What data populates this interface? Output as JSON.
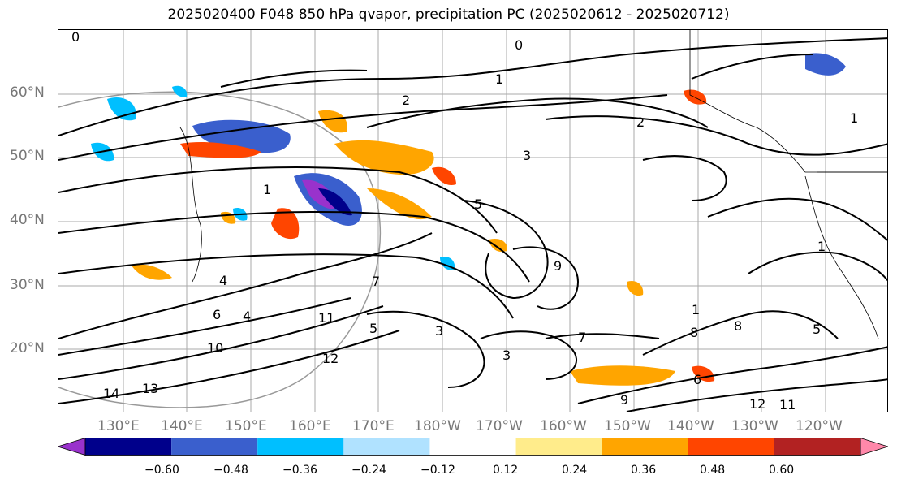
{
  "title": "2025020400 F048 850 hPa qvapor, precipitation PC (2025020612 - 2025020712)",
  "lat_labels": [
    "60°N",
    "50°N",
    "40°N",
    "30°N",
    "20°N"
  ],
  "lon_labels": [
    "130°E",
    "140°E",
    "150°E",
    "160°E",
    "170°E",
    "180°W",
    "170°W",
    "160°W",
    "150°W",
    "140°W",
    "130°W",
    "120°W"
  ],
  "colorbar": {
    "colors": [
      "#9932cc",
      "#00008b",
      "#3a5fcd",
      "#00bfff",
      "#b0e2ff",
      "#ffffff",
      "#ffec8b",
      "#ffa500",
      "#ff4500",
      "#b22222",
      "#ff88aa"
    ],
    "ticks": [
      "−0.60",
      "−0.48",
      "−0.36",
      "−0.24",
      "−0.12",
      "0.12",
      "0.24",
      "0.36",
      "0.48",
      "0.60"
    ]
  },
  "contour_labels": [
    "0",
    "0",
    "1",
    "2",
    "3",
    "1",
    "1",
    "4",
    "5",
    "7",
    "9",
    "11",
    "12",
    "10",
    "13",
    "14",
    "6",
    "4",
    "5",
    "3",
    "3",
    "1",
    "7",
    "8",
    "12",
    "11",
    "9",
    "8",
    "5",
    "6",
    "2",
    "1"
  ]
}
